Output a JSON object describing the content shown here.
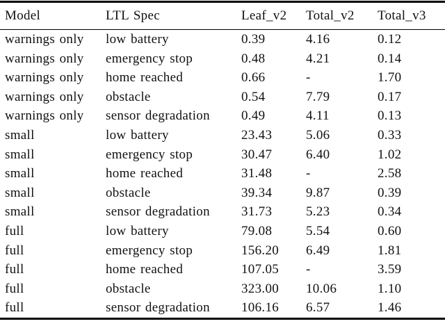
{
  "page": {
    "background_color": "#ffffff",
    "text_color": "#111111",
    "rule_color": "#000000"
  },
  "table": {
    "columns": [
      {
        "key": "model",
        "label": "Model"
      },
      {
        "key": "ltl_spec",
        "label": "LTL Spec"
      },
      {
        "key": "leaf_v2",
        "label": "Leaf_v2"
      },
      {
        "key": "total_v2",
        "label": "Total_v2"
      },
      {
        "key": "total_v3",
        "label": "Total_v3"
      }
    ],
    "rows": [
      [
        "warnings only",
        "low battery",
        "0.39",
        "4.16",
        "0.12"
      ],
      [
        "warnings only",
        "emergency stop",
        "0.48",
        "4.21",
        "0.14"
      ],
      [
        "warnings only",
        "home reached",
        "0.66",
        "-",
        "1.70"
      ],
      [
        "warnings only",
        "obstacle",
        "0.54",
        "7.79",
        "0.17"
      ],
      [
        "warnings only",
        "sensor degradation",
        "0.49",
        "4.11",
        "0.13"
      ],
      [
        "small",
        "low battery",
        "23.43",
        "5.06",
        "0.33"
      ],
      [
        "small",
        "emergency stop",
        "30.47",
        "6.40",
        "1.02"
      ],
      [
        "small",
        "home reached",
        "31.48",
        "-",
        "2.58"
      ],
      [
        "small",
        "obstacle",
        "39.34",
        "9.87",
        "0.39"
      ],
      [
        "small",
        "sensor degradation",
        "31.73",
        "5.23",
        "0.34"
      ],
      [
        "full",
        "low battery",
        "79.08",
        "5.54",
        "0.60"
      ],
      [
        "full",
        "emergency stop",
        "156.20",
        "6.49",
        "1.81"
      ],
      [
        "full",
        "home reached",
        "107.05",
        "-",
        "3.59"
      ],
      [
        "full",
        "obstacle",
        "323.00",
        "10.06",
        "1.10"
      ],
      [
        "full",
        "sensor degradation",
        "106.16",
        "6.57",
        "1.46"
      ]
    ]
  }
}
